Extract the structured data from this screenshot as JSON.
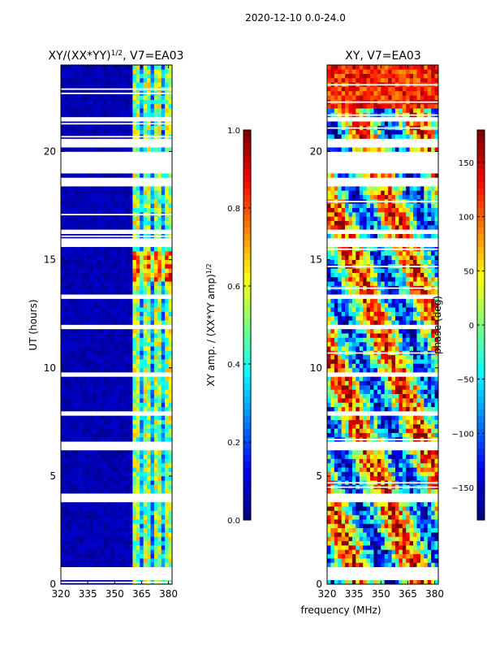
{
  "figure": {
    "suptitle": "2020-12-10 0.0-24.0",
    "shared_xlabel": "frequency (MHz)"
  },
  "colors": {
    "jet": [
      "#00007f",
      "#0000ff",
      "#007fff",
      "#00ffff",
      "#7fff7f",
      "#ffff00",
      "#ff7f00",
      "#ff0000",
      "#7f0000"
    ],
    "gap": "#ffffff"
  },
  "chart_data": [
    {
      "id": "amp",
      "type": "heatmap",
      "title": "XY/(XX*YY)",
      "title_sup": "1/2",
      "title_suffix": ", V7=EA03",
      "xlabel": "",
      "ylabel": "UT (hours)",
      "xlim": [
        320,
        382
      ],
      "ylim": [
        0,
        24
      ],
      "xticks": [
        320,
        335,
        350,
        365,
        380
      ],
      "yticks": [
        0,
        5,
        10,
        15,
        20
      ],
      "colorbar": {
        "label": "XY amp. / (XX*YY amp)",
        "label_sup": "1/2",
        "range": [
          0.0,
          1.0
        ],
        "ticks": [
          "0.0",
          "0.2",
          "0.4",
          "0.6",
          "0.8",
          "1.0"
        ]
      }
    },
    {
      "id": "phase",
      "type": "heatmap",
      "title": "XY, V7=EA03",
      "xlabel": "frequency (MHz)",
      "ylabel": "",
      "xlim": [
        320,
        382
      ],
      "ylim": [
        0,
        24
      ],
      "xticks": [
        320,
        335,
        350,
        365,
        380
      ],
      "yticks": [
        0,
        5,
        10,
        15,
        20
      ],
      "colorbar": {
        "label": "phase (deg)",
        "range": [
          -180,
          180
        ],
        "ticks": [
          "-150",
          "-100",
          "-50",
          "0",
          "50",
          "100",
          "150"
        ]
      }
    }
  ],
  "data_gaps_hours": [
    [
      0.3,
      0.7
    ],
    [
      3.9,
      4.2
    ],
    [
      6.2,
      6.5
    ],
    [
      9.55,
      9.75
    ],
    [
      11.75,
      11.95
    ],
    [
      18.5,
      18.75
    ],
    [
      19.0,
      20.0
    ],
    [
      20.2,
      20.55
    ],
    [
      21.4,
      21.55
    ],
    [
      15.6,
      15.9
    ],
    [
      16.2,
      16.45
    ],
    [
      13.2,
      13.35
    ],
    [
      7.9,
      8.05
    ]
  ]
}
